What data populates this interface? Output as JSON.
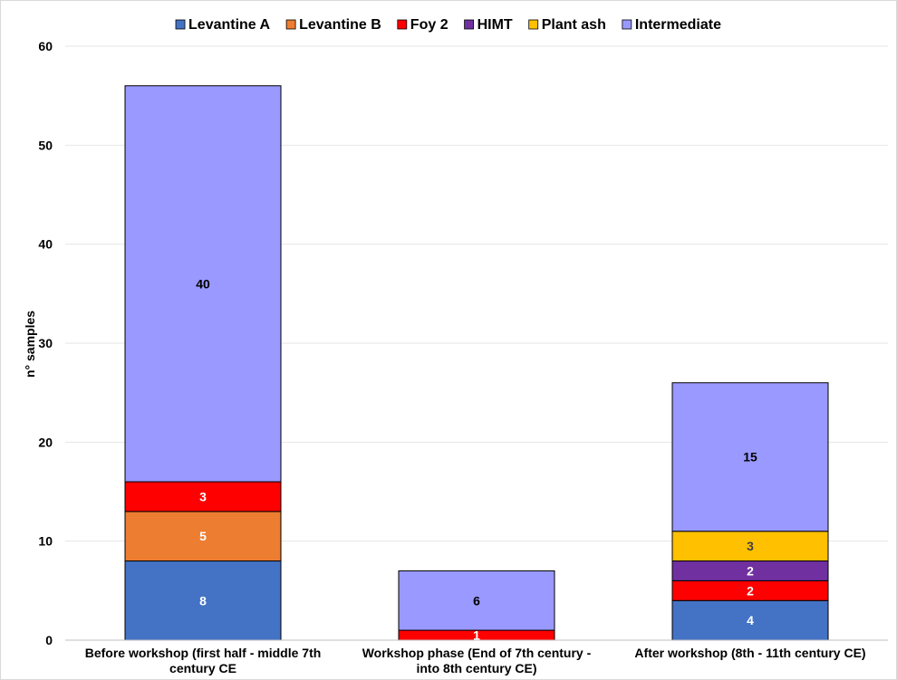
{
  "chart_data": {
    "type": "bar",
    "stacked": true,
    "title": "",
    "xlabel": "",
    "ylabel": "n° samples",
    "ylim": [
      0,
      60
    ],
    "yticks": [
      0,
      10,
      20,
      30,
      40,
      50,
      60
    ],
    "grid": "horizontal",
    "legend_position": "top",
    "categories": [
      [
        "Before workshop (first half - middle 7th",
        "century CE"
      ],
      [
        "Workshop phase (End of 7th century -",
        "into 8th century CE)"
      ],
      [
        "After workshop (8th - 11th century CE)"
      ]
    ],
    "series": [
      {
        "name": "Levantine A",
        "color": "#4472c4",
        "label_color": "#ffffff",
        "values": [
          8,
          0,
          4
        ]
      },
      {
        "name": "Levantine B",
        "color": "#ed7d31",
        "label_color": "#ffffff",
        "values": [
          5,
          0,
          0
        ]
      },
      {
        "name": "Foy 2",
        "color": "#ff0000",
        "label_color": "#ffffff",
        "values": [
          3,
          1,
          2
        ]
      },
      {
        "name": "HIMT",
        "color": "#7030a0",
        "label_color": "#ffffff",
        "values": [
          0,
          0,
          2
        ]
      },
      {
        "name": "Plant ash",
        "color": "#ffc000",
        "label_color": "#404040",
        "values": [
          0,
          0,
          3
        ]
      },
      {
        "name": "Intermediate",
        "color": "#9999ff",
        "label_color": "#000000",
        "values": [
          40,
          6,
          15
        ]
      }
    ]
  }
}
